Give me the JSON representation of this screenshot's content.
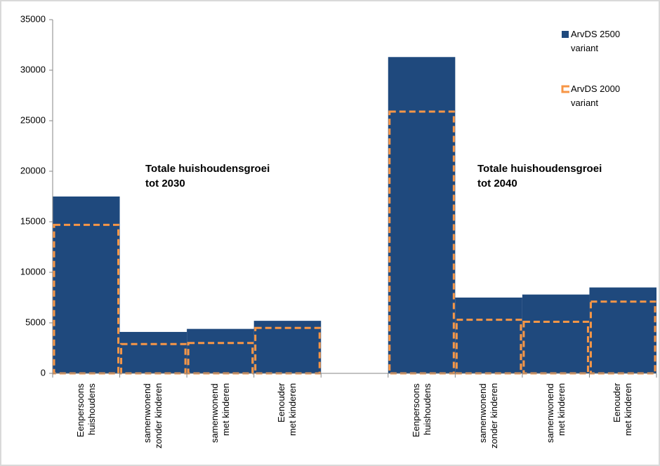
{
  "chart_data": {
    "type": "bar",
    "barmode": "overlay",
    "categories": [
      "Eenpersoons\nhuishoudens",
      "samenwonend\nzonder kinderen",
      "samenwonend\nmet kinderen",
      "Eenouder\nmet kinderen",
      null,
      "Eenpersoons\nhuishoudens",
      "samenwonend\nzonder kinderen",
      "samenwonend\nmet kinderen",
      "Eenouder\nmet kinderen"
    ],
    "series": [
      {
        "name": "ArvDS 2500\nvariant",
        "color": "#1f497d",
        "style": "fill",
        "values": [
          17500,
          4100,
          4400,
          5200,
          null,
          31300,
          7500,
          7800,
          8500
        ]
      },
      {
        "name": "ArvDS 2000\nvariant",
        "color": "#f79646",
        "style": "dashed-outline",
        "values": [
          14700,
          2900,
          3000,
          4500,
          null,
          25900,
          5300,
          5100,
          7100
        ]
      }
    ],
    "annotations": [
      "Totale huishoudensgroei\ntot 2030",
      "Totale huishoudensgroei\ntot 2040"
    ],
    "ylim": [
      0,
      35000
    ],
    "yticks": [
      0,
      5000,
      10000,
      15000,
      20000,
      25000,
      30000,
      35000
    ],
    "legend": "upper-right"
  }
}
